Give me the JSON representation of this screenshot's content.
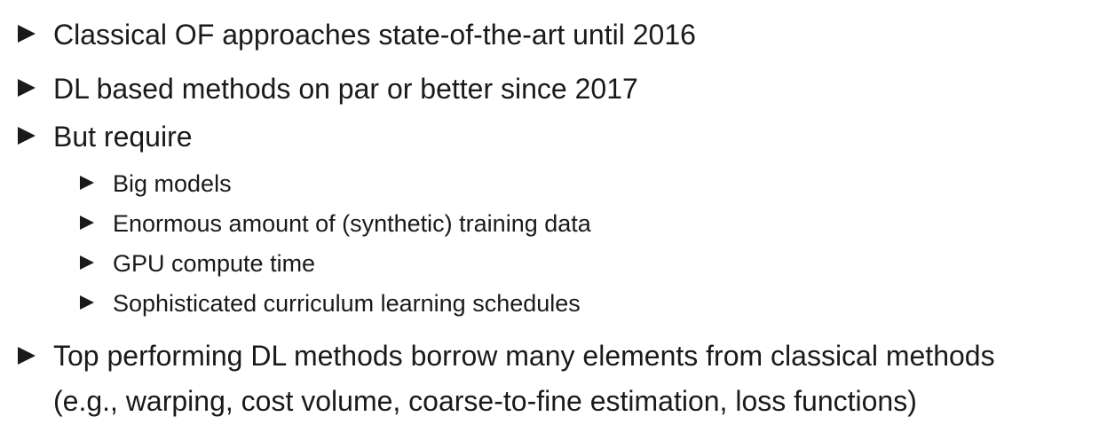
{
  "bullets": {
    "b1": "Classical OF approaches state-of-the-art until 2016",
    "b2": "DL based methods on par or better since 2017",
    "b3": "But require",
    "b3_sub": [
      "Big models",
      "Enormous amount of (synthetic) training data",
      "GPU compute time",
      "Sophisticated curriculum learning schedules"
    ],
    "b4_line1": "Top performing DL methods borrow many elements from classical methods",
    "b4_line2": "(e.g., warping, cost volume, coarse-to-fine estimation, loss functions)"
  },
  "icons": {
    "bullet": "triangle-right-icon"
  },
  "colors": {
    "text": "#1a1a1a",
    "background": "#ffffff"
  }
}
